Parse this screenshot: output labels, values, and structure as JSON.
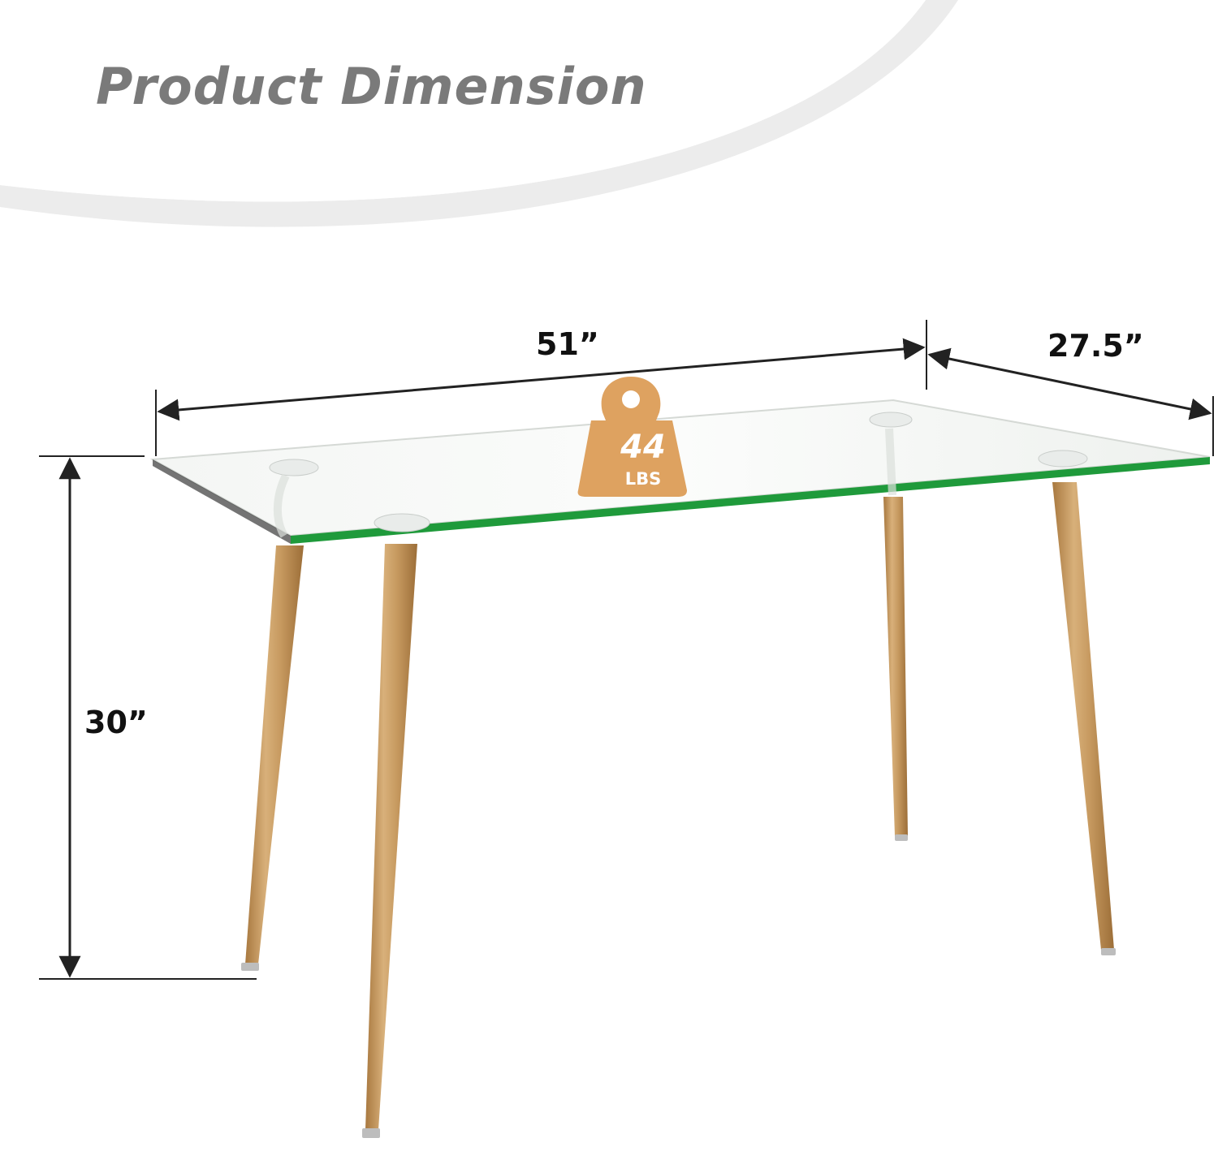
{
  "header": {
    "title": "Product Dimension"
  },
  "dimensions": {
    "width": "51”",
    "depth": "27.5”",
    "height": "30”"
  },
  "weight_badge": {
    "value": "44",
    "unit": "LBS"
  },
  "colors": {
    "title": "#7a7a7a",
    "badge": "#dea260",
    "glass_edge": "#1f9a3b",
    "wood": "#c49a63",
    "dimension_line": "#222222"
  },
  "icons": [
    "weight-icon"
  ]
}
